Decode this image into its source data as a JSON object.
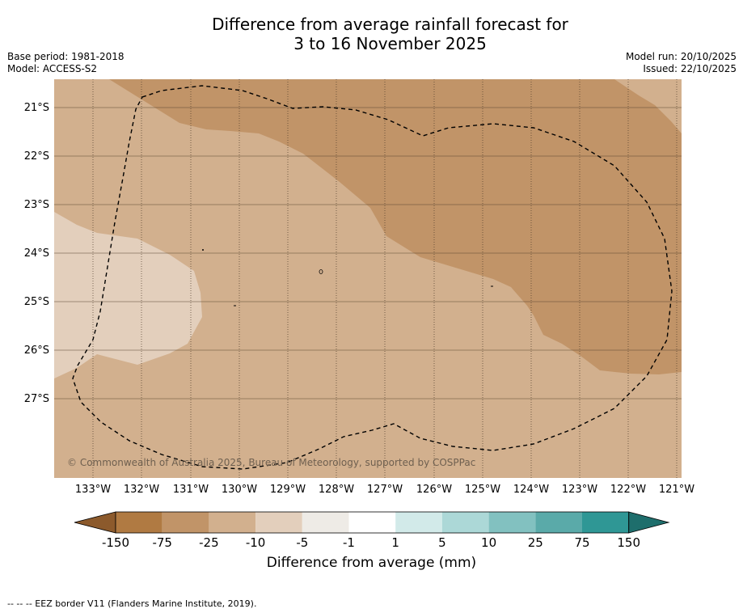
{
  "title_line1": "Difference from average rainfall forecast for",
  "title_line2": "3 to 16 November 2025",
  "base_period": "Base period: 1981-2018",
  "model": "Model: ACCESS-S2",
  "model_run": "Model run: 20/10/2025",
  "issued": "Issued: 22/10/2025",
  "copyright": "© Commonwealth of Australia 2025, Bureau of Meteorology, supported by COSPPac",
  "lat_labels": [
    "21°S",
    "22°S",
    "23°S",
    "24°S",
    "25°S",
    "26°S",
    "27°S"
  ],
  "lon_labels": [
    "133°W",
    "132°W",
    "131°W",
    "130°W",
    "129°W",
    "128°W",
    "127°W",
    "126°W",
    "125°W",
    "124°W",
    "123°W",
    "122°W",
    "121°W"
  ],
  "colorbar": {
    "labels": [
      "-150",
      "-75",
      "-25",
      "-10",
      "-5",
      "-1",
      "1",
      "5",
      "10",
      "25",
      "75",
      "150"
    ],
    "colors": [
      "#8c5a2c",
      "#b07a42",
      "#c19468",
      "#d2b08e",
      "#e3cfbc",
      "#eeebe6",
      "#ffffff",
      "#d2eae9",
      "#acd8d7",
      "#82c1c0",
      "#5aaaa9",
      "#2f9795",
      "#1e6e6c"
    ],
    "title": "Difference from average (mm)"
  },
  "footnote": "--  --  -- EEZ border V11 (Flanders Marine Institute, 2019)."
}
